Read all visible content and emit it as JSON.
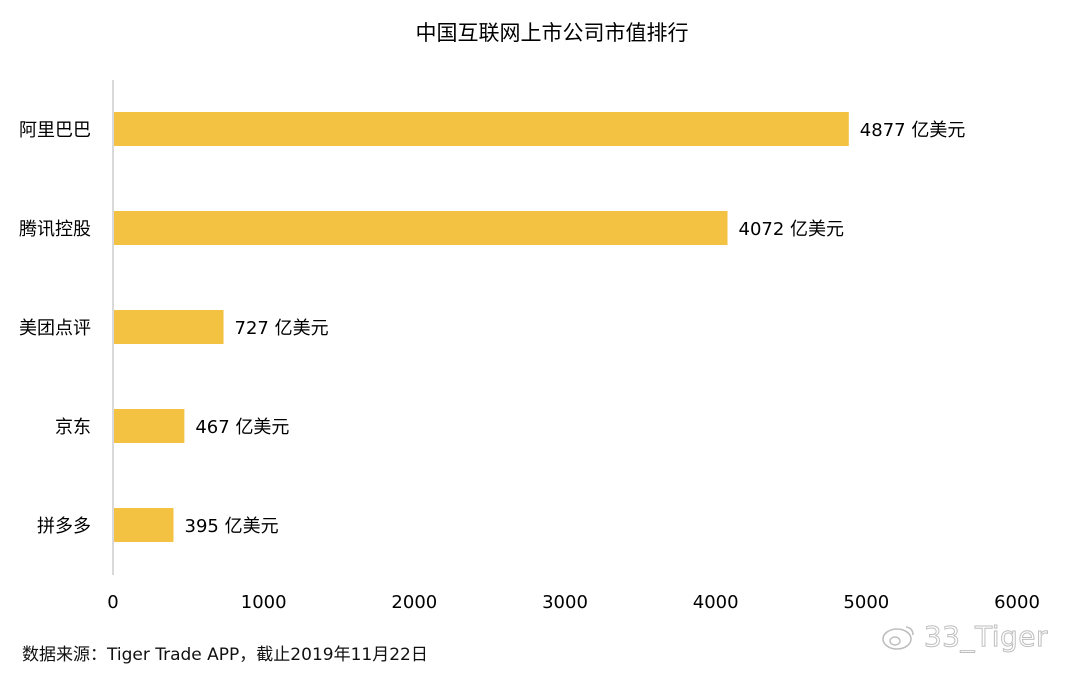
{
  "chart_data": {
    "type": "bar",
    "orientation": "horizontal",
    "title": "中国互联网上市公司市值排行",
    "categories": [
      "阿里巴巴",
      "腾讯控股",
      "美团点评",
      "京东",
      "拼多多"
    ],
    "values": [
      4877,
      4072,
      727,
      467,
      395
    ],
    "value_labels": [
      "4877 亿美元",
      "4072 亿美元",
      "727 亿美元",
      "467 亿美元",
      "395 亿美元"
    ],
    "xlim": [
      0,
      6000
    ],
    "xticks": [
      0,
      1000,
      2000,
      3000,
      4000,
      5000,
      6000
    ],
    "xlabel": "",
    "ylabel": "",
    "grid": false,
    "bar_color": "#F4C242"
  },
  "footer": {
    "source": "数据来源：Tiger Trade APP，截止2019年11月22日"
  },
  "watermark": {
    "icon": "weibo-icon",
    "text": "33_Tiger"
  }
}
